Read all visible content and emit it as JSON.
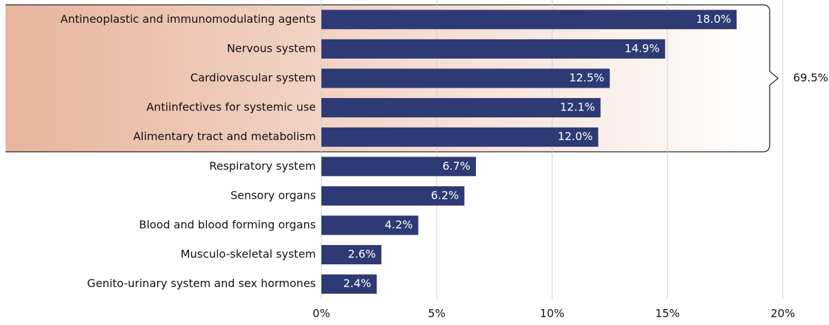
{
  "chart_data": {
    "type": "bar",
    "orientation": "horizontal",
    "categories": [
      "Antineoplastic and immunomodulating agents",
      "Nervous system",
      "Cardiovascular system",
      "Antiinfectives for systemic use",
      "Alimentary tract and metabolism",
      "Respiratory system",
      "Sensory organs",
      "Blood and blood forming organs",
      "Musculo-skeletal system",
      "Genito-urinary system and sex hormones"
    ],
    "values": [
      18.0,
      14.9,
      12.5,
      12.1,
      12.0,
      6.7,
      6.2,
      4.2,
      2.6,
      2.4
    ],
    "value_labels": [
      "18.0%",
      "14.9%",
      "12.5%",
      "12.1%",
      "12.0%",
      "6.7%",
      "6.2%",
      "4.2%",
      "2.6%",
      "2.4%"
    ],
    "color": "#2e3a74",
    "xlim": [
      0,
      20
    ],
    "xticks": [
      {
        "value": 0,
        "label": "0%"
      },
      {
        "value": 5,
        "label": "5%"
      },
      {
        "value": 10,
        "label": "10%"
      },
      {
        "value": 15,
        "label": "15%"
      },
      {
        "value": 20,
        "label": "20%"
      }
    ],
    "grid": true,
    "bracket": {
      "label": "69.5%",
      "first": 0,
      "last": 4
    }
  }
}
